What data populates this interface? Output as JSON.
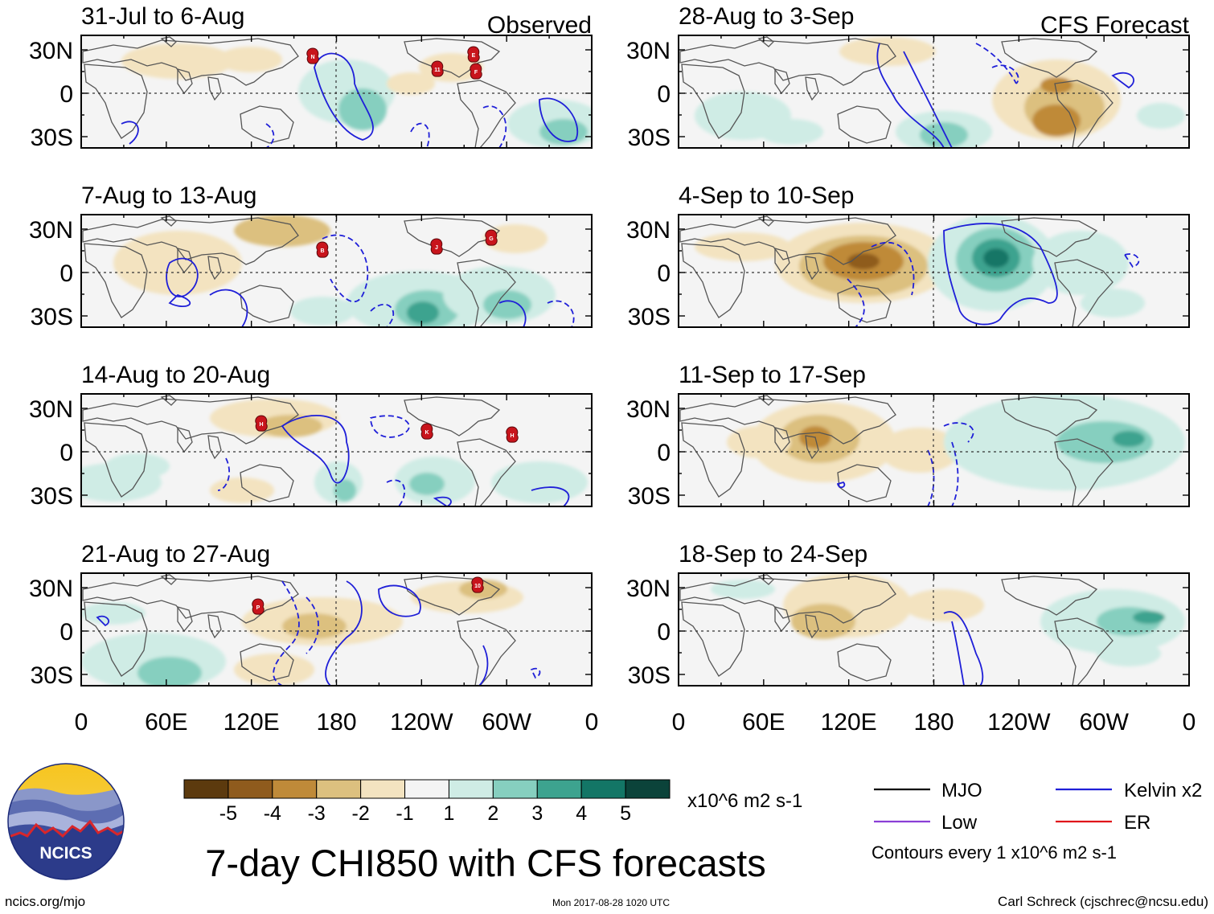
{
  "panel_labels": {
    "observed": "Observed",
    "forecast": "CFS Forecast"
  },
  "periods": {
    "observed": [
      "31-Jul to 6-Aug",
      "7-Aug to 13-Aug",
      "14-Aug to 20-Aug",
      "21-Aug to 27-Aug"
    ],
    "forecast": [
      "28-Aug to 3-Sep",
      "4-Sep to 10-Sep",
      "11-Sep to 17-Sep",
      "18-Sep to 24-Sep"
    ]
  },
  "lat_labels": [
    "30N",
    "0",
    "30S"
  ],
  "lon_labels": [
    "0",
    "60E",
    "120E",
    "180",
    "120W",
    "60W",
    "0"
  ],
  "storms": {
    "observed": [
      [
        "N",
        "11",
        "E",
        "F"
      ],
      [
        "B",
        "J",
        "G"
      ],
      [
        "H",
        "K",
        "H"
      ],
      [
        "P",
        "10"
      ]
    ]
  },
  "colorbar": {
    "colors": [
      "#5c3a0e",
      "#8f5b1d",
      "#bf8a39",
      "#dcc07f",
      "#f3e3c0",
      "#f4f4f4",
      "#cfece5",
      "#86cfbf",
      "#3da38f",
      "#137666",
      "#0b433a"
    ],
    "tick_labels": [
      "-5",
      "-4",
      "-3",
      "-2",
      "-1",
      "1",
      "2",
      "3",
      "4",
      "5"
    ],
    "units": "x10^6 m2 s-1"
  },
  "legend": {
    "items": [
      {
        "label": "MJO",
        "color": "#000000"
      },
      {
        "label": "Kelvin x2",
        "color": "#1f1fd8"
      },
      {
        "label": "Low",
        "color": "#8a3fd6"
      },
      {
        "label": "ER",
        "color": "#e0161a"
      }
    ],
    "note": "Contours every 1 x10^6 m2 s-1"
  },
  "title": "7-day CHI850 with CFS forecasts",
  "logo_text": "NCICS",
  "footer": {
    "url": "ncics.org/mjo",
    "timestamp": "Mon 2017-08-28 1020 UTC",
    "credit": "Carl Schreck (cjschrec@ncsu.edu)"
  }
}
